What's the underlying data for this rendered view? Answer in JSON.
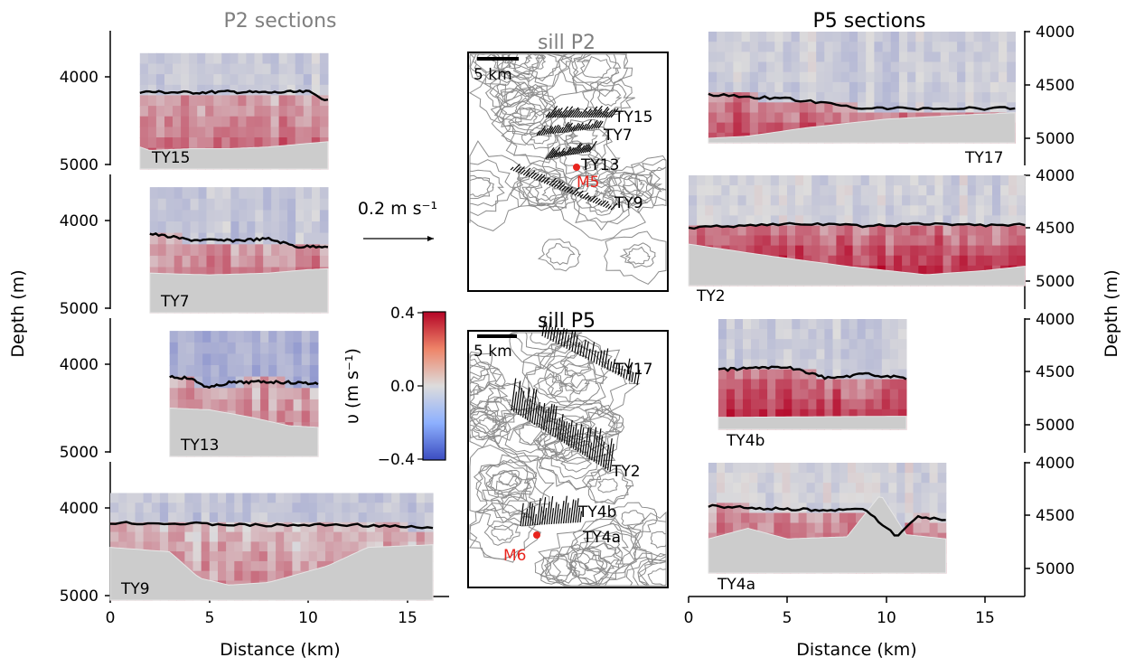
{
  "titles": {
    "p2": "P2 sections",
    "p5": "P5 sections",
    "sill_p2": "sill P2",
    "sill_p5": "sill P5"
  },
  "axes": {
    "left_ylabel": "Depth (m)",
    "right_ylabel": "Depth (m)",
    "left_xlabel": "Distance (km)",
    "right_xlabel": "Distance (km)",
    "left_yticks": [
      "4000",
      "5000"
    ],
    "right_yticks": [
      "4000",
      "4500",
      "5000"
    ],
    "x_ticks": [
      "0",
      "5",
      "10",
      "15"
    ]
  },
  "colorbar": {
    "label": "υ (m s⁻¹)",
    "ticks": [
      "0.4",
      "0.0",
      "−0.4"
    ],
    "min": -0.4,
    "max": 0.4,
    "colormap": "coolwarm",
    "low_color": "#3b4cc0",
    "mid_color": "#dddcdc",
    "high_color": "#b40426"
  },
  "scale": {
    "vector_label": "0.2 m s⁻¹",
    "map_scale_p2": "5 km",
    "map_scale_p5": "5 km"
  },
  "moorings": {
    "m5": "M5",
    "m6": "M6"
  },
  "map_labels_p2": [
    "TY15",
    "TY7",
    "TY13",
    "TY9"
  ],
  "map_labels_p5": [
    "TY17",
    "TY2",
    "TY4b",
    "TY4a"
  ],
  "chart_data": [
    {
      "type": "heatmap",
      "name": "TY15",
      "label": "TY15",
      "group": "P2 sections",
      "xlabel": "Distance (km)",
      "ylabel": "Depth (m)",
      "x_range_km": [
        1.5,
        11
      ],
      "depth_range_m": [
        4000,
        5000
      ],
      "ylim": [
        3730,
        5000
      ],
      "interface_depth_m": [
        [
          1.5,
          4170
        ],
        [
          4,
          4180
        ],
        [
          6,
          4170
        ],
        [
          8,
          4180
        ],
        [
          10,
          4170
        ],
        [
          11,
          4270
        ]
      ],
      "bottom_depth_m": [
        [
          1.5,
          4800
        ],
        [
          2,
          4840
        ],
        [
          4,
          4820
        ],
        [
          6,
          4820
        ],
        [
          8,
          4800
        ],
        [
          10,
          4760
        ],
        [
          11,
          4740
        ]
      ],
      "mean_upper_v": -0.05,
      "mean_lower_v": 0.18
    },
    {
      "type": "heatmap",
      "name": "TY7",
      "label": "TY7",
      "group": "P2 sections",
      "xlabel": "Distance (km)",
      "ylabel": "Depth (m)",
      "x_range_km": [
        2,
        11
      ],
      "depth_range_m": [
        4000,
        5000
      ],
      "ylim": [
        3620,
        5000
      ],
      "interface_depth_m": [
        [
          2,
          4150
        ],
        [
          4,
          4220
        ],
        [
          6,
          4230
        ],
        [
          8,
          4210
        ],
        [
          9.5,
          4300
        ],
        [
          11,
          4290
        ]
      ],
      "bottom_depth_m": [
        [
          2,
          4600
        ],
        [
          5,
          4620
        ],
        [
          8,
          4600
        ],
        [
          10,
          4560
        ],
        [
          11,
          4550
        ]
      ],
      "mean_upper_v": -0.06,
      "mean_lower_v": 0.2
    },
    {
      "type": "heatmap",
      "name": "TY13",
      "label": "TY13",
      "group": "P2 sections",
      "xlabel": "Distance (km)",
      "ylabel": "Depth (m)",
      "x_range_km": [
        3,
        10.5
      ],
      "depth_range_m": [
        4000,
        5000
      ],
      "ylim": [
        3620,
        5000
      ],
      "interface_depth_m": [
        [
          3,
          4140
        ],
        [
          4,
          4160
        ],
        [
          5,
          4270
        ],
        [
          6,
          4210
        ],
        [
          8,
          4200
        ],
        [
          10.5,
          4220
        ]
      ],
      "bottom_depth_m": [
        [
          3,
          4500
        ],
        [
          5,
          4520
        ],
        [
          7,
          4600
        ],
        [
          9,
          4700
        ],
        [
          10.5,
          4720
        ]
      ],
      "mean_upper_v": -0.12,
      "mean_lower_v": 0.15
    },
    {
      "type": "heatmap",
      "name": "TY9",
      "label": "TY9",
      "group": "P2 sections",
      "xlabel": "Distance (km)",
      "ylabel": "Depth (m)",
      "x_range_km": [
        0,
        16.3
      ],
      "depth_range_m": [
        4000,
        5000
      ],
      "ylim": [
        3830,
        5000
      ],
      "interface_depth_m": [
        [
          0,
          4170
        ],
        [
          4,
          4180
        ],
        [
          8,
          4200
        ],
        [
          12,
          4190
        ],
        [
          16.3,
          4230
        ]
      ],
      "bottom_depth_m": [
        [
          0,
          4450
        ],
        [
          3,
          4500
        ],
        [
          4.5,
          4800
        ],
        [
          6,
          4880
        ],
        [
          8,
          4850
        ],
        [
          11,
          4660
        ],
        [
          13,
          4450
        ],
        [
          16.3,
          4420
        ]
      ],
      "mean_upper_v": -0.06,
      "mean_lower_v": 0.12
    },
    {
      "type": "heatmap",
      "name": "TY17",
      "label": "TY17",
      "group": "P5 sections",
      "xlabel": "Distance (km)",
      "ylabel": "Depth (m)",
      "x_range_km": [
        1,
        16.5
      ],
      "depth_range_m": [
        4000,
        4800
      ],
      "ylim": [
        4000,
        4800
      ],
      "interface_depth_m": [
        [
          1,
          4590
        ],
        [
          5,
          4630
        ],
        [
          9,
          4720
        ],
        [
          12,
          4720
        ],
        [
          16.5,
          4720
        ]
      ],
      "bottom_depth_m": [
        [
          1,
          5000
        ],
        [
          3,
          4980
        ],
        [
          6,
          4900
        ],
        [
          10,
          4820
        ],
        [
          14,
          4780
        ],
        [
          16.5,
          4760
        ]
      ],
      "mean_upper_v": -0.04,
      "mean_lower_v": 0.28
    },
    {
      "type": "heatmap",
      "name": "TY2",
      "label": "TY2",
      "group": "P5 sections",
      "xlabel": "Distance (km)",
      "ylabel": "Depth (m)",
      "x_range_km": [
        0,
        17
      ],
      "depth_range_m": [
        4000,
        5000
      ],
      "ylim": [
        4000,
        5000
      ],
      "interface_depth_m": [
        [
          0,
          4500
        ],
        [
          3,
          4470
        ],
        [
          6,
          4460
        ],
        [
          9,
          4480
        ],
        [
          12,
          4460
        ],
        [
          15,
          4470
        ],
        [
          17,
          4470
        ]
      ],
      "bottom_depth_m": [
        [
          0,
          4650
        ],
        [
          4,
          4760
        ],
        [
          8,
          4860
        ],
        [
          12,
          4940
        ],
        [
          15,
          4900
        ],
        [
          17,
          4860
        ]
      ],
      "mean_upper_v": -0.03,
      "mean_lower_v": 0.3
    },
    {
      "type": "heatmap",
      "name": "TY4b",
      "label": "TY4b",
      "group": "P5 sections",
      "xlabel": "Distance (km)",
      "ylabel": "Depth (m)",
      "x_range_km": [
        1.5,
        11
      ],
      "depth_range_m": [
        4000,
        5000
      ],
      "ylim": [
        4000,
        5000
      ],
      "interface_depth_m": [
        [
          1.5,
          4480
        ],
        [
          5,
          4450
        ],
        [
          7,
          4560
        ],
        [
          9,
          4520
        ],
        [
          11,
          4560
        ]
      ],
      "bottom_depth_m": [
        [
          1.5,
          4930
        ],
        [
          10,
          4920
        ],
        [
          11,
          4920
        ]
      ],
      "mean_upper_v": -0.05,
      "mean_lower_v": 0.3
    },
    {
      "type": "heatmap",
      "name": "TY4a",
      "label": "TY4a",
      "group": "P5 sections",
      "xlabel": "Distance (km)",
      "ylabel": "Depth (m)",
      "x_range_km": [
        1,
        13
      ],
      "depth_range_m": [
        4000,
        5000
      ],
      "ylim": [
        4000,
        5000
      ],
      "interface_depth_m": [
        [
          1,
          4410
        ],
        [
          5,
          4440
        ],
        [
          9,
          4450
        ],
        [
          10.5,
          4700
        ],
        [
          11.5,
          4510
        ],
        [
          13,
          4540
        ]
      ],
      "bottom_depth_m": [
        [
          1,
          4720
        ],
        [
          3,
          4620
        ],
        [
          5,
          4720
        ],
        [
          8,
          4700
        ],
        [
          9.7,
          4300
        ],
        [
          11,
          4680
        ],
        [
          13,
          4720
        ]
      ],
      "mean_upper_v": -0.02,
      "mean_lower_v": 0.22
    }
  ]
}
